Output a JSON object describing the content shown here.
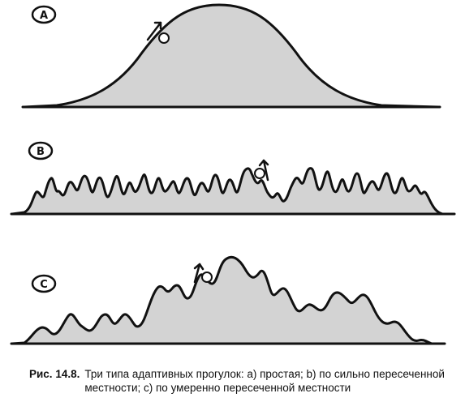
{
  "panels": [
    {
      "label": "A",
      "terrain": "simple"
    },
    {
      "label": "B",
      "terrain": "very rugged"
    },
    {
      "label": "C",
      "terrain": "moderately rugged"
    }
  ],
  "caption": {
    "number": "Рис. 14.8.",
    "text": "Три типа адаптивных прогулок: а) простая; b) по сильно пересеченной местности; с) по умеренно пересеченной местности"
  }
}
